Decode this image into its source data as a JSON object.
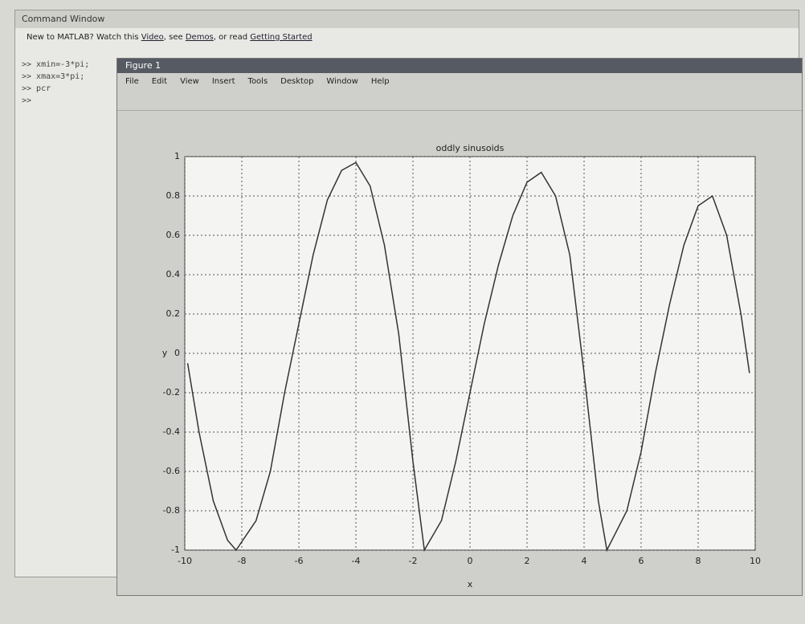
{
  "window": {
    "title": "Command Window",
    "help": {
      "prefix": "New to MATLAB? Watch this",
      "video": "Video",
      "mid1": ", see",
      "demos": "Demos",
      "mid2": ", or read",
      "start": "Getting Started"
    },
    "commands": [
      ">> xmin=-3*pi;",
      ">> xmax=3*pi;",
      ">> pcr",
      ">>"
    ]
  },
  "figure": {
    "title": "Figure 1",
    "menu": [
      "File",
      "Edit",
      "View",
      "Insert",
      "Tools",
      "Desktop",
      "Window",
      "Help"
    ]
  },
  "chart_data": {
    "type": "line",
    "title": "oddly sinusoids",
    "xlabel": "x",
    "ylabel": "y",
    "color": "#333333",
    "grid": true,
    "x": [
      -9.9,
      -9.5,
      -9,
      -8.5,
      -8.2,
      -7.5,
      -7,
      -6.5,
      -6,
      -5.5,
      -5,
      -4.5,
      -4,
      -3.5,
      -3,
      -2.5,
      -2,
      -1.6,
      -1,
      -0.5,
      0,
      0.5,
      1,
      1.5,
      2,
      2.5,
      3,
      3.5,
      4,
      4.5,
      4.8,
      5.5,
      6,
      6.5,
      7,
      7.5,
      8,
      8.5,
      9,
      9.5,
      9.8
    ],
    "values": [
      -0.05,
      -0.4,
      -0.75,
      -0.95,
      -1,
      -0.85,
      -0.6,
      -0.2,
      0.15,
      0.5,
      0.78,
      0.93,
      0.97,
      0.85,
      0.55,
      0.1,
      -0.55,
      -1,
      -0.85,
      -0.55,
      -0.2,
      0.15,
      0.45,
      0.7,
      0.87,
      0.92,
      0.8,
      0.5,
      -0.1,
      -0.75,
      -1,
      -0.8,
      -0.5,
      -0.1,
      0.25,
      0.55,
      0.75,
      0.8,
      0.6,
      0.2,
      -0.1
    ],
    "xlim": [
      -10,
      10
    ],
    "xticks": [
      -10,
      -8,
      -6,
      -4,
      -2,
      0,
      2,
      4,
      6,
      8,
      10
    ],
    "ylim": [
      -1,
      1
    ],
    "yticks": [
      -1,
      -0.8,
      -0.6,
      -0.4,
      -0.2,
      0,
      0.2,
      0.4,
      0.6,
      0.8,
      1
    ]
  }
}
